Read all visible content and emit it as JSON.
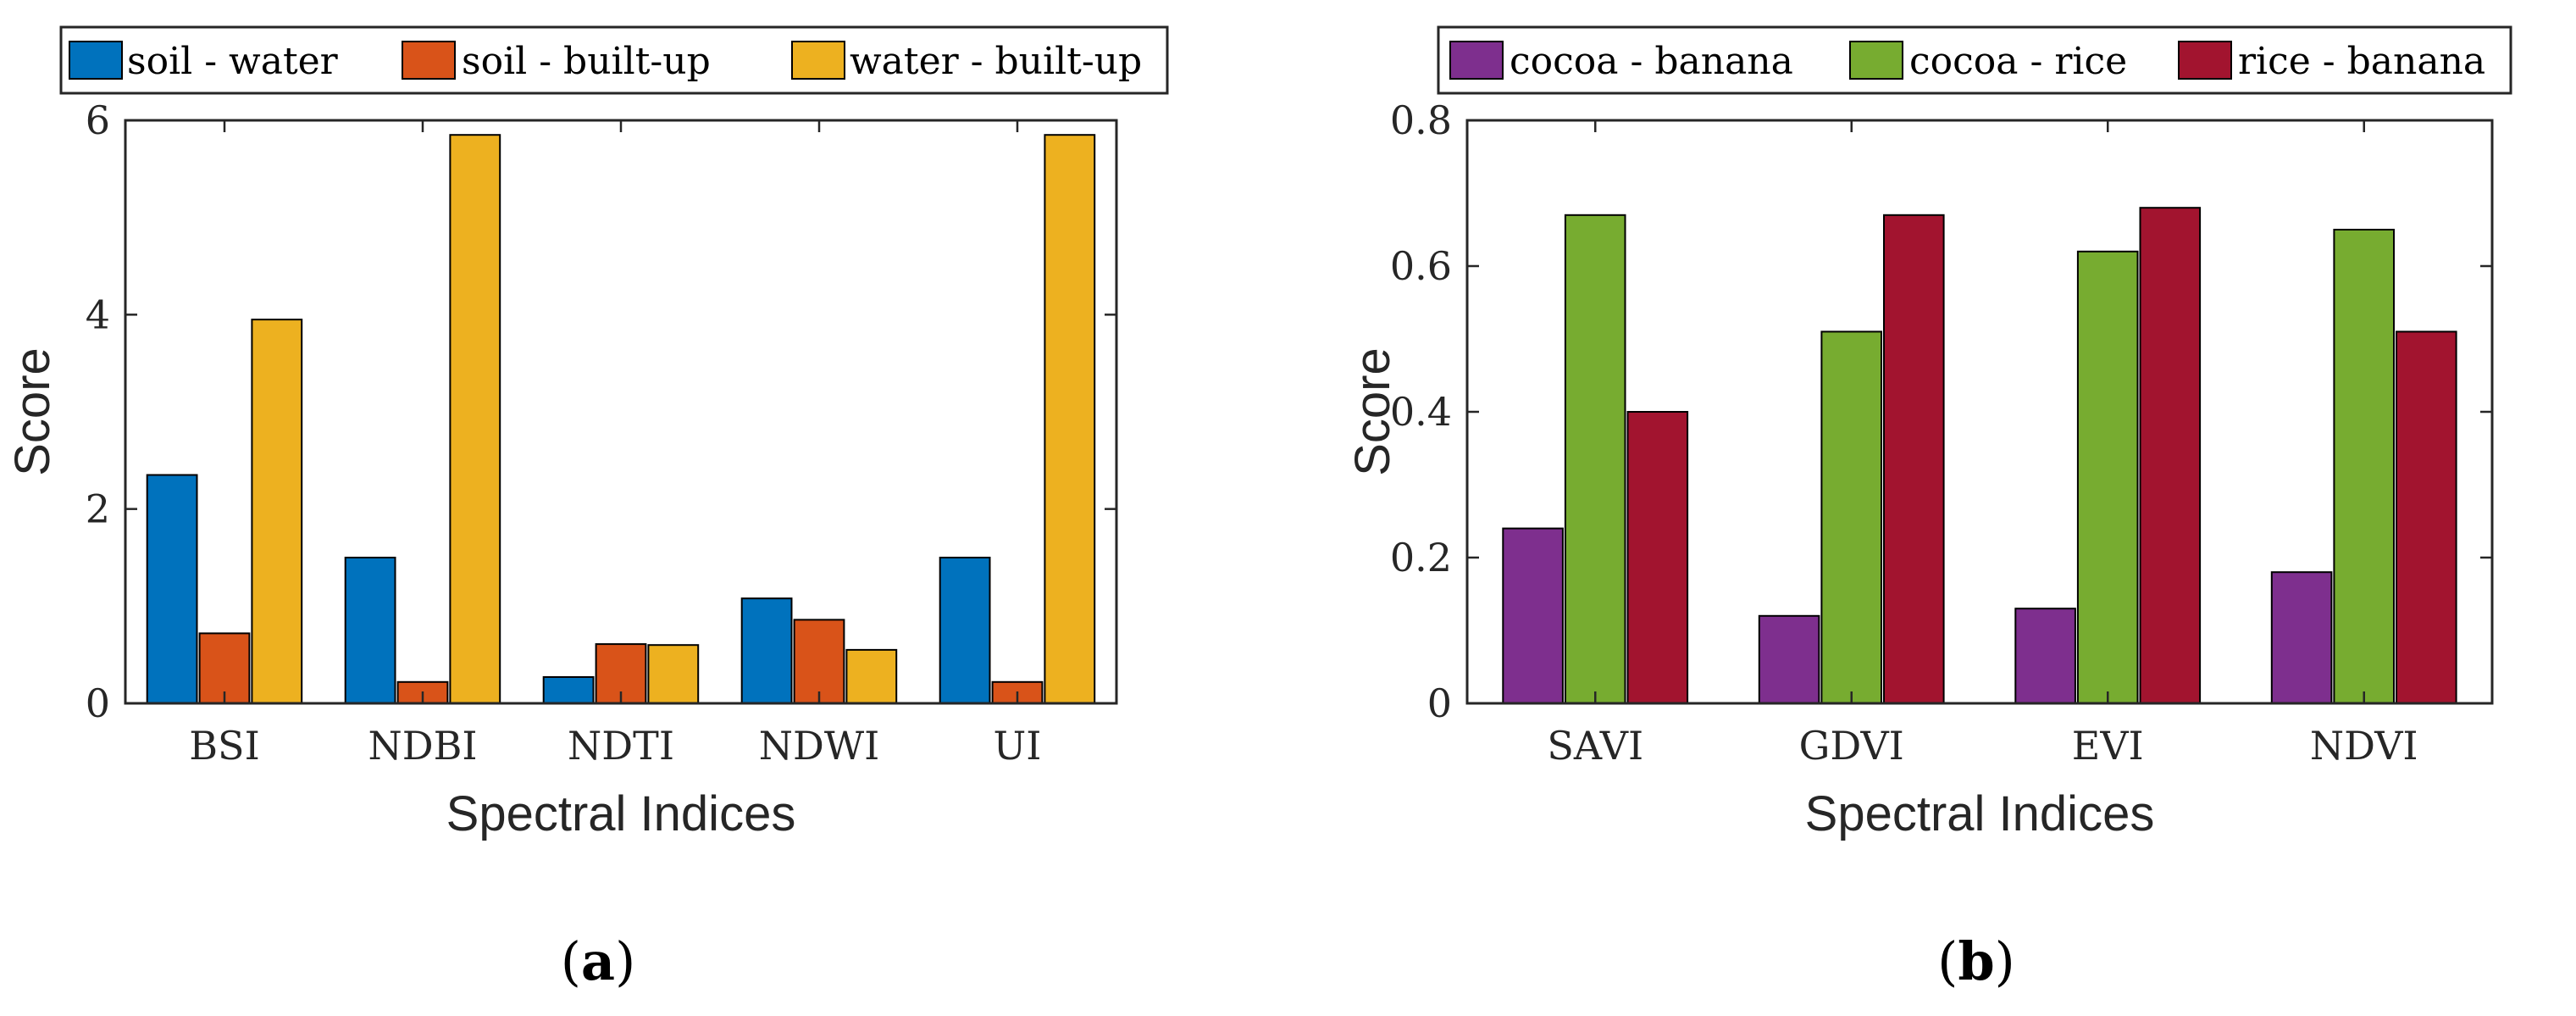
{
  "chart_data": [
    {
      "type": "bar",
      "panel_label": "a",
      "title": "",
      "xlabel": "Spectral Indices",
      "ylabel": "Score",
      "ylim": [
        0,
        6
      ],
      "yticks": [
        0,
        2,
        4,
        6
      ],
      "ytick_labels": [
        "0",
        "2",
        "4",
        "6"
      ],
      "categories": [
        "BSI",
        "NDBI",
        "NDTI",
        "NDWI",
        "UI"
      ],
      "series": [
        {
          "name": "soil - water",
          "color": "#0072BD",
          "values": [
            2.35,
            1.5,
            0.27,
            1.08,
            1.5
          ]
        },
        {
          "name": "soil - built-up",
          "color": "#D95319",
          "values": [
            0.72,
            0.22,
            0.61,
            0.86,
            0.22
          ]
        },
        {
          "name": "water - built-up",
          "color": "#EDB120",
          "values": [
            3.95,
            5.85,
            0.6,
            0.55,
            5.85
          ]
        }
      ],
      "legend": "top, horizontal"
    },
    {
      "type": "bar",
      "panel_label": "b",
      "title": "",
      "xlabel": "Spectral Indices",
      "ylabel": "Score",
      "ylim": [
        0,
        0.8
      ],
      "yticks": [
        0,
        0.2,
        0.4,
        0.6,
        0.8
      ],
      "ytick_labels": [
        "0",
        "0.2",
        "0.4",
        "0.6",
        "0.8"
      ],
      "categories": [
        "SAVI",
        "GDVI",
        "EVI",
        "NDVI"
      ],
      "series": [
        {
          "name": "cocoa - banana",
          "color": "#7E2F8E",
          "values": [
            0.24,
            0.12,
            0.13,
            0.18
          ]
        },
        {
          "name": "cocoa - rice",
          "color": "#77AC30",
          "values": [
            0.67,
            0.51,
            0.62,
            0.65
          ]
        },
        {
          "name": "rice - banana",
          "color": "#A2142F",
          "values": [
            0.4,
            0.67,
            0.68,
            0.51
          ]
        }
      ],
      "legend": "top, horizontal"
    }
  ]
}
